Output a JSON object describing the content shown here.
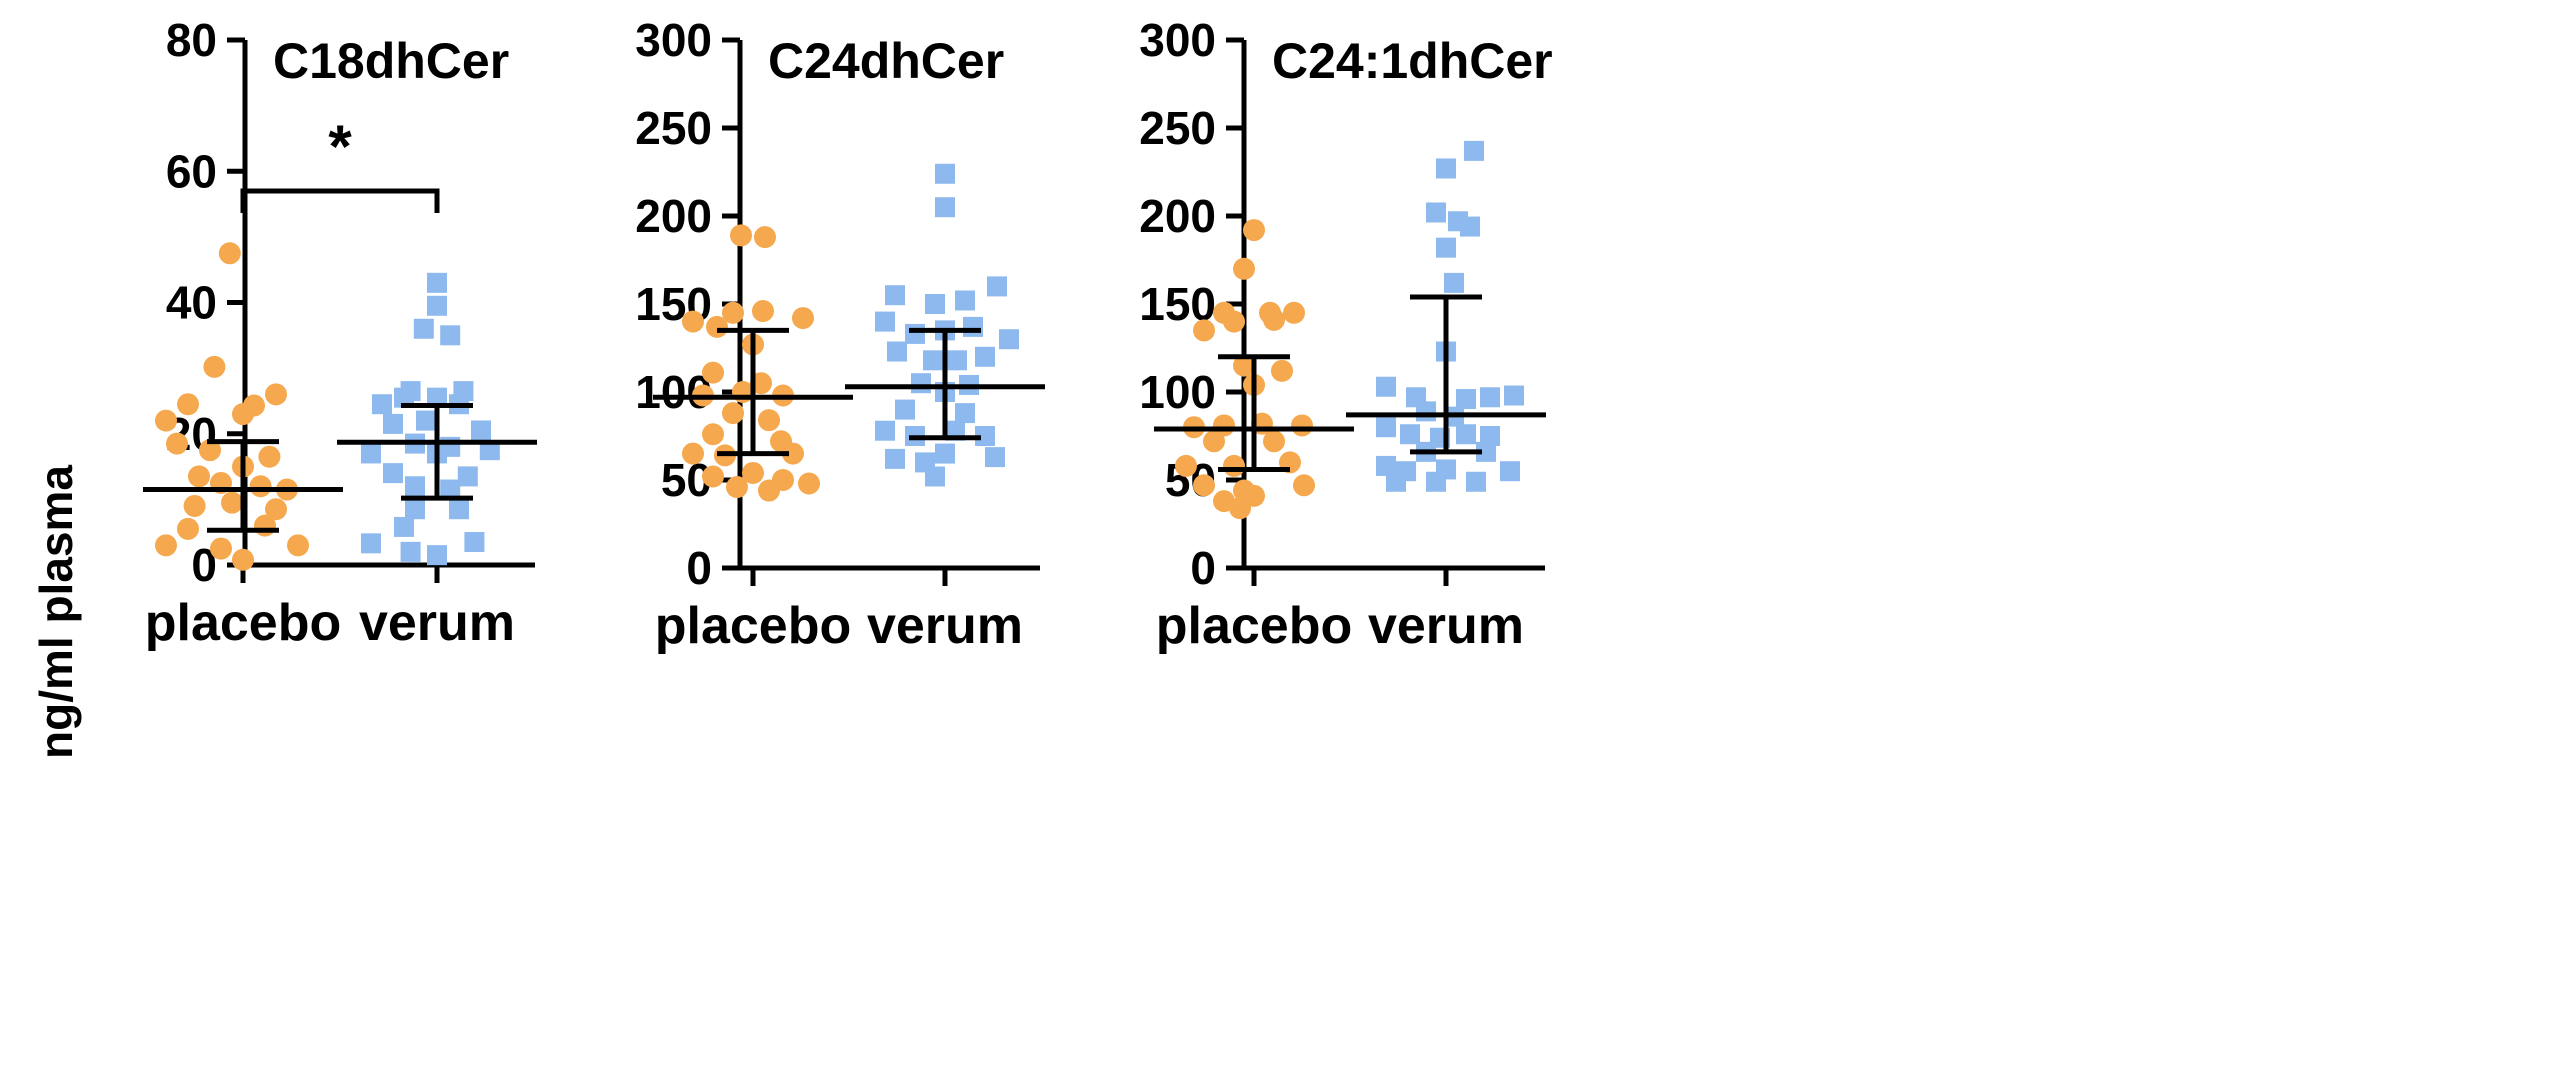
{
  "chart_data": [
    {
      "type": "scatter",
      "title": "C18dhCer",
      "ylabel": "ng/ml plasma",
      "ylim": [
        0,
        80
      ],
      "yticks": [
        0,
        20,
        40,
        60,
        80
      ],
      "categories": [
        "placebo",
        "verum"
      ],
      "significance": {
        "label": "*",
        "between": [
          "placebo",
          "verum"
        ],
        "level": 57
      },
      "series": [
        {
          "name": "placebo",
          "marker": "circle",
          "color": "#F5A84D",
          "mean": 11.5,
          "err_low": 5.3,
          "err_high": 18.8,
          "points": [
            {
              "x": -0.06,
              "y": 47.5
            },
            {
              "x": -0.13,
              "y": 30.2
            },
            {
              "x": 0.15,
              "y": 26.0
            },
            {
              "x": -0.25,
              "y": 24.5
            },
            {
              "x": 0.05,
              "y": 24.3
            },
            {
              "x": -0.35,
              "y": 22.0
            },
            {
              "x": 0.0,
              "y": 23.0
            },
            {
              "x": -0.3,
              "y": 18.5
            },
            {
              "x": -0.15,
              "y": 17.5
            },
            {
              "x": 0.12,
              "y": 16.5
            },
            {
              "x": -0.2,
              "y": 13.5
            },
            {
              "x": 0.0,
              "y": 15.0
            },
            {
              "x": -0.1,
              "y": 12.5
            },
            {
              "x": 0.08,
              "y": 12.0
            },
            {
              "x": 0.2,
              "y": 11.5
            },
            {
              "x": -0.22,
              "y": 9.0
            },
            {
              "x": -0.05,
              "y": 9.5
            },
            {
              "x": 0.15,
              "y": 8.5
            },
            {
              "x": -0.25,
              "y": 5.5
            },
            {
              "x": 0.1,
              "y": 6.0
            },
            {
              "x": -0.35,
              "y": 3.0
            },
            {
              "x": -0.1,
              "y": 2.5
            },
            {
              "x": 0.25,
              "y": 3.0
            },
            {
              "x": 0.0,
              "y": 0.8
            }
          ]
        },
        {
          "name": "verum",
          "marker": "square",
          "color": "#8DB9EE",
          "mean": 18.7,
          "err_low": 10.2,
          "err_high": 24.3,
          "points": [
            {
              "x": 0.0,
              "y": 43.0
            },
            {
              "x": 0.0,
              "y": 39.5
            },
            {
              "x": -0.06,
              "y": 36.0
            },
            {
              "x": 0.06,
              "y": 35.0
            },
            {
              "x": -0.12,
              "y": 26.5
            },
            {
              "x": 0.12,
              "y": 26.5
            },
            {
              "x": -0.15,
              "y": 25.5
            },
            {
              "x": 0.0,
              "y": 25.5
            },
            {
              "x": -0.25,
              "y": 24.5
            },
            {
              "x": 0.1,
              "y": 24.5
            },
            {
              "x": -0.05,
              "y": 22.0
            },
            {
              "x": -0.2,
              "y": 21.5
            },
            {
              "x": 0.2,
              "y": 20.5
            },
            {
              "x": -0.1,
              "y": 18.5
            },
            {
              "x": 0.06,
              "y": 18.0
            },
            {
              "x": -0.3,
              "y": 17.0
            },
            {
              "x": 0.24,
              "y": 17.5
            },
            {
              "x": 0.0,
              "y": 17.0
            },
            {
              "x": -0.2,
              "y": 14.0
            },
            {
              "x": 0.14,
              "y": 13.5
            },
            {
              "x": -0.1,
              "y": 12.0
            },
            {
              "x": 0.06,
              "y": 11.5
            },
            {
              "x": -0.1,
              "y": 8.5
            },
            {
              "x": 0.1,
              "y": 8.5
            },
            {
              "x": -0.15,
              "y": 5.8
            },
            {
              "x": -0.3,
              "y": 3.3
            },
            {
              "x": 0.17,
              "y": 3.5
            },
            {
              "x": -0.12,
              "y": 2.0
            },
            {
              "x": 0.0,
              "y": 1.5
            }
          ]
        }
      ]
    },
    {
      "type": "scatter",
      "title": "C24dhCer",
      "ylabel": "",
      "ylim": [
        0,
        300
      ],
      "yticks": [
        0,
        50,
        100,
        150,
        200,
        250,
        300
      ],
      "categories": [
        "placebo",
        "verum"
      ],
      "series": [
        {
          "name": "placebo",
          "marker": "circle",
          "color": "#F5A84D",
          "mean": 97,
          "err_low": 65,
          "err_high": 135,
          "points": [
            {
              "x": -0.06,
              "y": 189
            },
            {
              "x": 0.06,
              "y": 188
            },
            {
              "x": -0.3,
              "y": 140
            },
            {
              "x": -0.1,
              "y": 145
            },
            {
              "x": 0.05,
              "y": 146
            },
            {
              "x": 0.25,
              "y": 142
            },
            {
              "x": -0.18,
              "y": 137
            },
            {
              "x": 0.0,
              "y": 127
            },
            {
              "x": -0.2,
              "y": 111
            },
            {
              "x": 0.04,
              "y": 105
            },
            {
              "x": -0.25,
              "y": 98
            },
            {
              "x": -0.05,
              "y": 100
            },
            {
              "x": 0.15,
              "y": 98
            },
            {
              "x": -0.1,
              "y": 88
            },
            {
              "x": 0.08,
              "y": 84
            },
            {
              "x": -0.2,
              "y": 76
            },
            {
              "x": 0.14,
              "y": 72
            },
            {
              "x": -0.3,
              "y": 65
            },
            {
              "x": -0.14,
              "y": 64
            },
            {
              "x": 0.2,
              "y": 65
            },
            {
              "x": -0.2,
              "y": 52
            },
            {
              "x": 0.0,
              "y": 54
            },
            {
              "x": 0.15,
              "y": 50
            },
            {
              "x": -0.08,
              "y": 46
            },
            {
              "x": 0.08,
              "y": 44
            },
            {
              "x": 0.28,
              "y": 48
            }
          ]
        },
        {
          "name": "verum",
          "marker": "square",
          "color": "#8DB9EE",
          "mean": 103,
          "err_low": 74,
          "err_high": 135,
          "points": [
            {
              "x": 0.0,
              "y": 224
            },
            {
              "x": 0.0,
              "y": 205
            },
            {
              "x": -0.25,
              "y": 155
            },
            {
              "x": -0.05,
              "y": 150
            },
            {
              "x": 0.1,
              "y": 152
            },
            {
              "x": 0.26,
              "y": 160
            },
            {
              "x": -0.3,
              "y": 140
            },
            {
              "x": -0.15,
              "y": 133
            },
            {
              "x": 0.0,
              "y": 135
            },
            {
              "x": 0.14,
              "y": 137
            },
            {
              "x": 0.32,
              "y": 130
            },
            {
              "x": -0.24,
              "y": 123
            },
            {
              "x": -0.06,
              "y": 118
            },
            {
              "x": 0.06,
              "y": 118
            },
            {
              "x": 0.2,
              "y": 120
            },
            {
              "x": -0.12,
              "y": 105
            },
            {
              "x": 0.0,
              "y": 100
            },
            {
              "x": 0.12,
              "y": 104
            },
            {
              "x": -0.2,
              "y": 90
            },
            {
              "x": 0.1,
              "y": 88
            },
            {
              "x": -0.3,
              "y": 78
            },
            {
              "x": -0.15,
              "y": 75
            },
            {
              "x": 0.05,
              "y": 78
            },
            {
              "x": 0.2,
              "y": 75
            },
            {
              "x": -0.25,
              "y": 62
            },
            {
              "x": 0.0,
              "y": 65
            },
            {
              "x": 0.25,
              "y": 63
            },
            {
              "x": -0.1,
              "y": 60
            },
            {
              "x": -0.05,
              "y": 52
            }
          ]
        }
      ]
    },
    {
      "type": "scatter",
      "title": "C24:1dhCer",
      "ylabel": "",
      "ylim": [
        0,
        300
      ],
      "yticks": [
        0,
        50,
        100,
        150,
        200,
        250,
        300
      ],
      "categories": [
        "placebo",
        "verum"
      ],
      "series": [
        {
          "name": "placebo",
          "marker": "circle",
          "color": "#F5A84D",
          "mean": 79,
          "err_low": 56,
          "err_high": 120,
          "points": [
            {
              "x": 0.0,
              "y": 192
            },
            {
              "x": -0.05,
              "y": 170
            },
            {
              "x": -0.15,
              "y": 145
            },
            {
              "x": 0.08,
              "y": 145
            },
            {
              "x": 0.2,
              "y": 145
            },
            {
              "x": -0.1,
              "y": 140
            },
            {
              "x": 0.1,
              "y": 141
            },
            {
              "x": -0.25,
              "y": 135
            },
            {
              "x": -0.05,
              "y": 115
            },
            {
              "x": 0.14,
              "y": 112
            },
            {
              "x": 0.0,
              "y": 104
            },
            {
              "x": -0.3,
              "y": 80
            },
            {
              "x": -0.15,
              "y": 81
            },
            {
              "x": 0.04,
              "y": 82
            },
            {
              "x": 0.24,
              "y": 81
            },
            {
              "x": -0.2,
              "y": 72
            },
            {
              "x": 0.1,
              "y": 72
            },
            {
              "x": -0.34,
              "y": 58
            },
            {
              "x": -0.1,
              "y": 58
            },
            {
              "x": 0.18,
              "y": 60
            },
            {
              "x": -0.25,
              "y": 47
            },
            {
              "x": -0.05,
              "y": 44
            },
            {
              "x": 0.25,
              "y": 47
            },
            {
              "x": 0.0,
              "y": 41
            },
            {
              "x": -0.15,
              "y": 38
            },
            {
              "x": -0.07,
              "y": 34
            }
          ]
        },
        {
          "name": "verum",
          "marker": "square",
          "color": "#8DB9EE",
          "mean": 87,
          "err_low": 66,
          "err_high": 154,
          "points": [
            {
              "x": 0.14,
              "y": 237
            },
            {
              "x": 0.0,
              "y": 227
            },
            {
              "x": -0.05,
              "y": 202
            },
            {
              "x": 0.06,
              "y": 197
            },
            {
              "x": 0.12,
              "y": 194
            },
            {
              "x": 0.0,
              "y": 182
            },
            {
              "x": 0.04,
              "y": 162
            },
            {
              "x": 0.0,
              "y": 123
            },
            {
              "x": -0.3,
              "y": 103
            },
            {
              "x": -0.15,
              "y": 97
            },
            {
              "x": 0.1,
              "y": 96
            },
            {
              "x": 0.22,
              "y": 97
            },
            {
              "x": 0.34,
              "y": 98
            },
            {
              "x": -0.1,
              "y": 89
            },
            {
              "x": 0.04,
              "y": 86
            },
            {
              "x": -0.3,
              "y": 80
            },
            {
              "x": -0.18,
              "y": 76
            },
            {
              "x": -0.03,
              "y": 74
            },
            {
              "x": 0.1,
              "y": 76
            },
            {
              "x": 0.22,
              "y": 75
            },
            {
              "x": -0.1,
              "y": 66
            },
            {
              "x": 0.2,
              "y": 66
            },
            {
              "x": -0.3,
              "y": 58
            },
            {
              "x": -0.2,
              "y": 55
            },
            {
              "x": 0.0,
              "y": 56
            },
            {
              "x": 0.32,
              "y": 55
            },
            {
              "x": -0.25,
              "y": 49
            },
            {
              "x": -0.05,
              "y": 49
            },
            {
              "x": 0.15,
              "y": 49
            }
          ]
        }
      ]
    }
  ]
}
